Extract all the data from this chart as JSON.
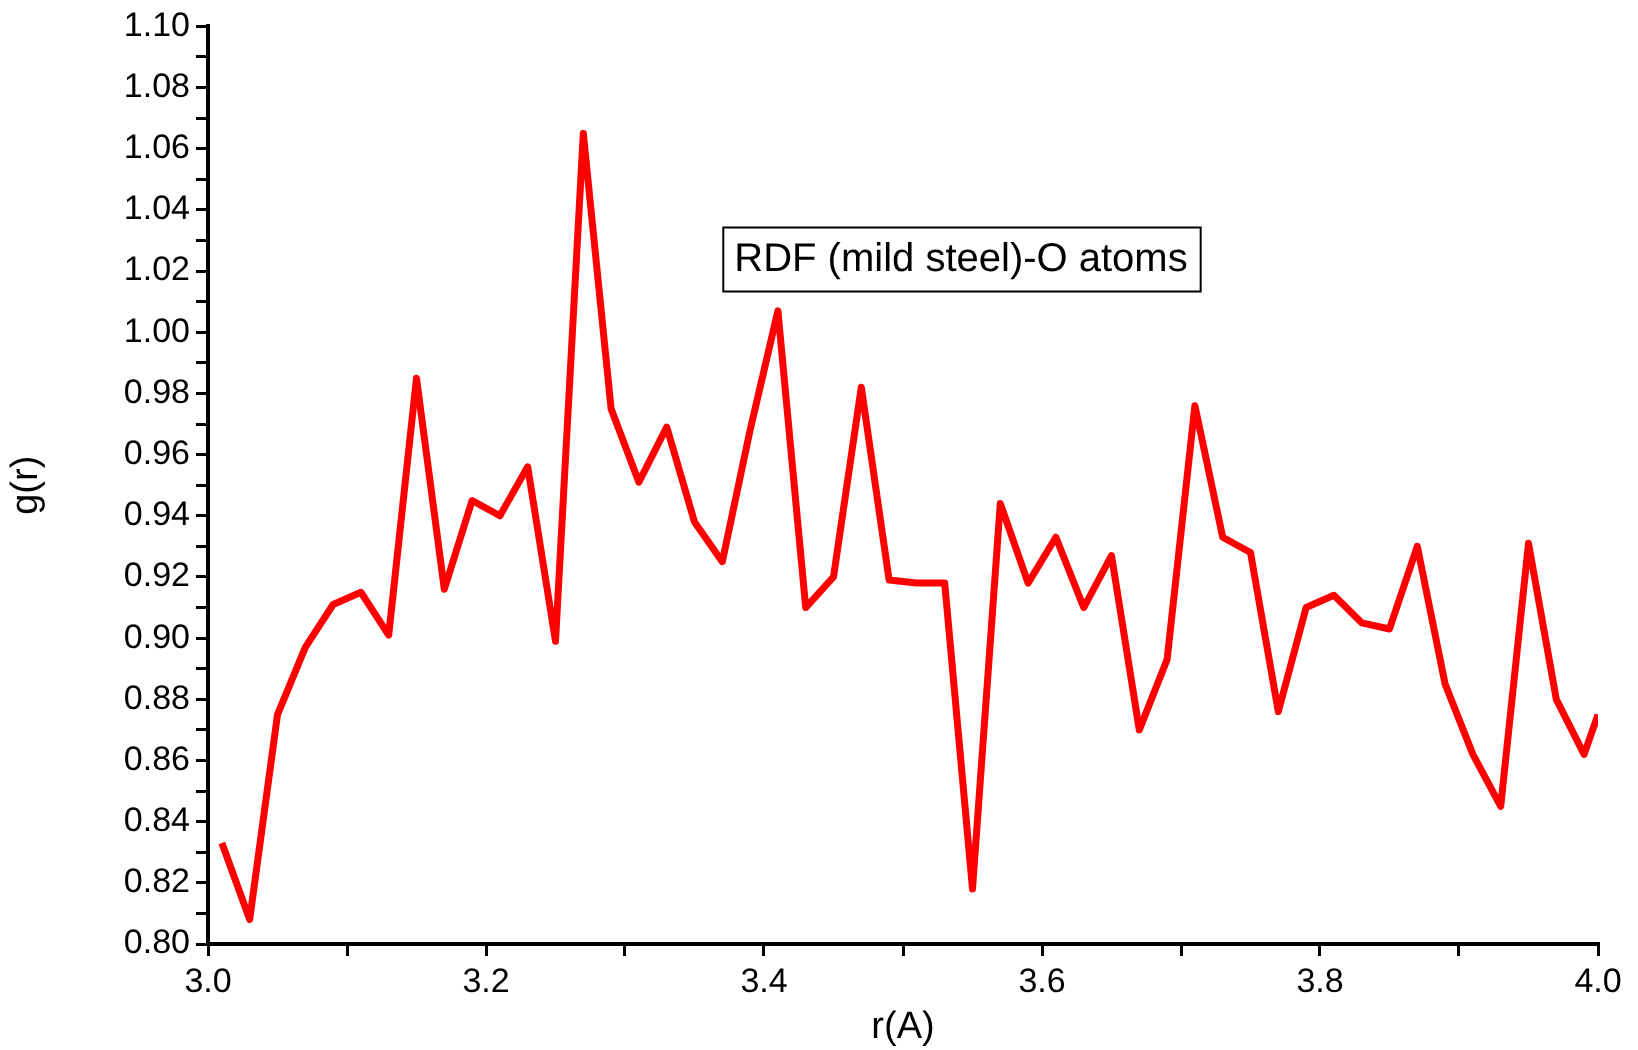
{
  "chart_data": {
    "type": "line",
    "xlabel": "r(A)",
    "ylabel": "g(r)",
    "annotations": [
      "RDF (mild steel)-O atoms"
    ],
    "x": [
      3.01,
      3.03,
      3.05,
      3.07,
      3.09,
      3.11,
      3.13,
      3.15,
      3.17,
      3.19,
      3.21,
      3.23,
      3.25,
      3.27,
      3.29,
      3.31,
      3.33,
      3.35,
      3.37,
      3.39,
      3.41,
      3.43,
      3.45,
      3.47,
      3.49,
      3.51,
      3.53,
      3.55,
      3.57,
      3.59,
      3.61,
      3.63,
      3.65,
      3.67,
      3.69,
      3.71,
      3.73,
      3.75,
      3.77,
      3.79,
      3.81,
      3.83,
      3.85,
      3.87,
      3.89,
      3.91,
      3.93,
      3.95,
      3.97,
      3.99,
      4.0
    ],
    "series": [
      {
        "color": "#ff0000",
        "values": [
          0.833,
          0.808,
          0.875,
          0.897,
          0.911,
          0.915,
          0.901,
          0.985,
          0.916,
          0.945,
          0.94,
          0.956,
          0.899,
          1.065,
          0.975,
          0.951,
          0.969,
          0.938,
          0.925,
          0.968,
          1.007,
          0.91,
          0.92,
          0.982,
          0.919,
          0.918,
          0.918,
          0.818,
          0.944,
          0.918,
          0.933,
          0.91,
          0.927,
          0.87,
          0.893,
          0.976,
          0.933,
          0.928,
          0.876,
          0.91,
          0.914,
          0.905,
          0.903,
          0.93,
          0.885,
          0.862,
          0.845,
          0.931,
          0.88,
          0.862,
          0.875
        ]
      }
    ],
    "xlim": [
      3.0,
      4.0
    ],
    "ylim": [
      0.8,
      1.1
    ],
    "xticks": [
      {
        "value": 3.0,
        "label": "3.0"
      },
      {
        "value": 3.1,
        "label": null
      },
      {
        "value": 3.2,
        "label": "3.2"
      },
      {
        "value": 3.3,
        "label": null
      },
      {
        "value": 3.4,
        "label": "3.4"
      },
      {
        "value": 3.5,
        "label": null
      },
      {
        "value": 3.6,
        "label": "3.6"
      },
      {
        "value": 3.7,
        "label": null
      },
      {
        "value": 3.8,
        "label": "3.8"
      },
      {
        "value": 3.9,
        "label": null
      },
      {
        "value": 4.0,
        "label": "4.0"
      }
    ],
    "yticks": [
      {
        "value": 0.8,
        "label": "0.80"
      },
      {
        "value": 0.81,
        "label": null
      },
      {
        "value": 0.82,
        "label": "0.82"
      },
      {
        "value": 0.83,
        "label": null
      },
      {
        "value": 0.84,
        "label": "0.84"
      },
      {
        "value": 0.85,
        "label": null
      },
      {
        "value": 0.86,
        "label": "0.86"
      },
      {
        "value": 0.87,
        "label": null
      },
      {
        "value": 0.88,
        "label": "0.88"
      },
      {
        "value": 0.89,
        "label": null
      },
      {
        "value": 0.9,
        "label": "0.90"
      },
      {
        "value": 0.91,
        "label": null
      },
      {
        "value": 0.92,
        "label": "0.92"
      },
      {
        "value": 0.93,
        "label": null
      },
      {
        "value": 0.94,
        "label": "0.94"
      },
      {
        "value": 0.95,
        "label": null
      },
      {
        "value": 0.96,
        "label": "0.96"
      },
      {
        "value": 0.97,
        "label": null
      },
      {
        "value": 0.98,
        "label": "0.98"
      },
      {
        "value": 0.99,
        "label": null
      },
      {
        "value": 1.0,
        "label": "1.00"
      },
      {
        "value": 1.01,
        "label": null
      },
      {
        "value": 1.02,
        "label": "1.02"
      },
      {
        "value": 1.03,
        "label": null
      },
      {
        "value": 1.04,
        "label": "1.04"
      },
      {
        "value": 1.05,
        "label": null
      },
      {
        "value": 1.06,
        "label": "1.06"
      },
      {
        "value": 1.07,
        "label": null
      },
      {
        "value": 1.08,
        "label": "1.08"
      },
      {
        "value": 1.09,
        "label": null
      },
      {
        "value": 1.1,
        "label": "1.10"
      }
    ],
    "grid": false,
    "legend": false,
    "marker": "none",
    "line_style": "solid"
  }
}
